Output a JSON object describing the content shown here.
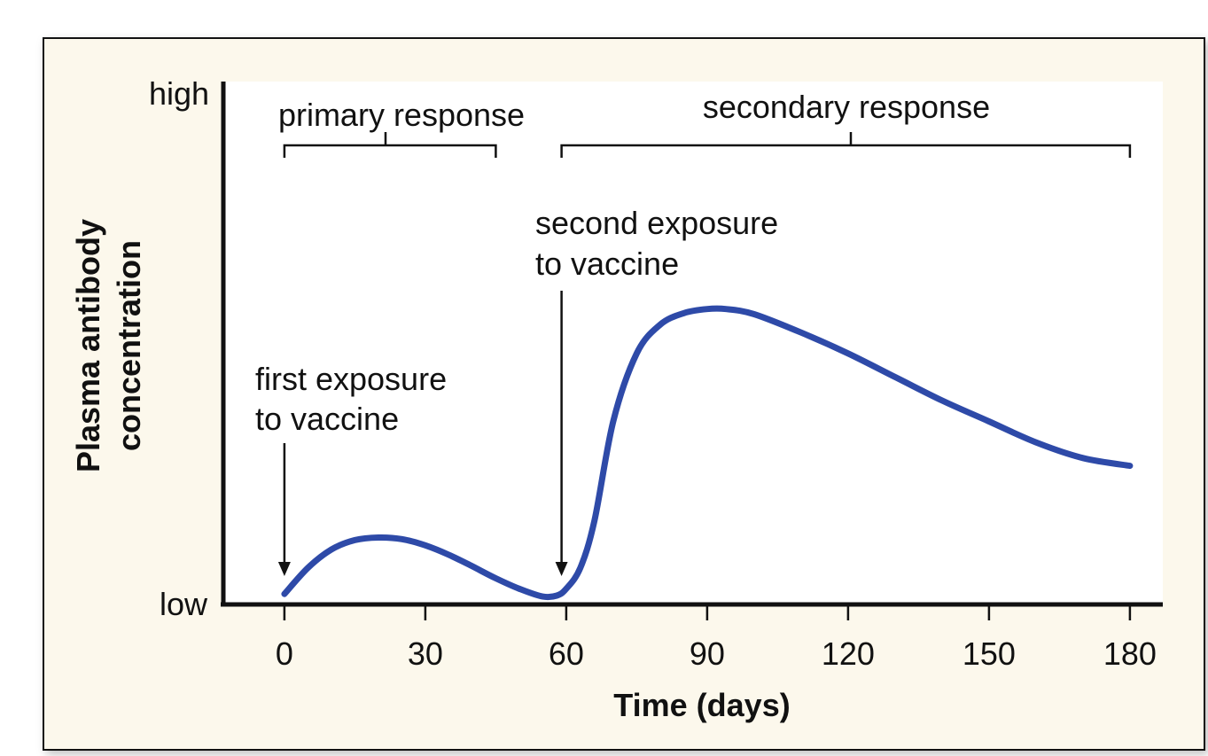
{
  "colors": {
    "panel_background": "#fcf8ec",
    "plot_background": "#ffffff",
    "curve": "#2e4aa8",
    "ink": "#111111"
  },
  "chart_data": {
    "type": "line",
    "title": "",
    "xlabel": "Time (days)",
    "ylabel_lines": [
      "Plasma antibody",
      "concentration"
    ],
    "x_ticks": [
      0,
      30,
      60,
      90,
      120,
      150,
      180
    ],
    "xlim": [
      -13,
      187
    ],
    "y_tick_labels": {
      "high": "high",
      "low": "low"
    },
    "ylim": [
      0,
      100
    ],
    "grid": false,
    "legend": "none",
    "series": [
      {
        "x": [
          0,
          5,
          10,
          15,
          20,
          25,
          30,
          35,
          40,
          45,
          50,
          55,
          58,
          60,
          63,
          66,
          70,
          75,
          80,
          85,
          90,
          94,
          100,
          110,
          120,
          130,
          140,
          150,
          160,
          170,
          180
        ],
        "y": [
          2,
          7,
          10.5,
          12.3,
          12.8,
          12.5,
          11.3,
          9.5,
          7.3,
          5,
          3,
          1.5,
          1.7,
          3,
          7,
          16,
          35,
          48,
          53.5,
          55.7,
          56.5,
          56.5,
          55.5,
          52,
          48,
          43.5,
          39,
          35,
          31,
          28,
          26.5
        ]
      }
    ],
    "annotations": {
      "primary_response": {
        "label": "primary response",
        "x_start": 0,
        "x_end": 45
      },
      "secondary_response": {
        "label": "secondary response",
        "x_start": 59,
        "x_end": 180
      },
      "first_exposure": {
        "lines": [
          "first exposure",
          "to vaccine"
        ],
        "x": 0
      },
      "second_exposure": {
        "lines": [
          "second exposure",
          "to vaccine"
        ],
        "x": 59
      }
    }
  }
}
